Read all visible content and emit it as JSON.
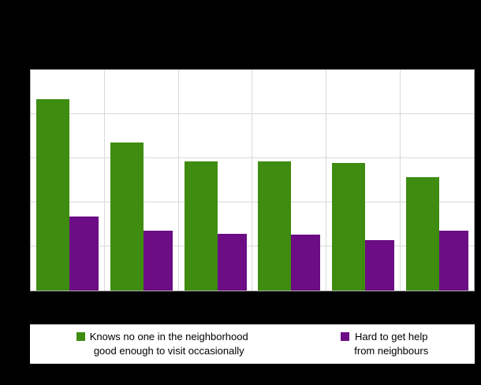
{
  "chart_data": {
    "type": "bar",
    "title": "",
    "xlabel": "",
    "ylabel": "",
    "ylim": [
      0,
      25
    ],
    "ytick_step": 5,
    "grid": true,
    "legend_position": "bottom",
    "categories": [
      "",
      "",
      "",
      "",
      "",
      ""
    ],
    "series": [
      {
        "name": "Knows no one in the neighborhood good enough to visit occasionally",
        "color": "#3e8c10",
        "values": [
          21.7,
          16.8,
          14.6,
          14.6,
          14.5,
          12.9
        ]
      },
      {
        "name": "Hard to get help from neighbours",
        "color": "#6c0d85",
        "values": [
          8.4,
          6.8,
          6.4,
          6.3,
          5.7,
          6.8
        ]
      }
    ]
  },
  "legend": {
    "items": [
      {
        "line1": "Knows no one in the neighborhood",
        "line2": "good enough to visit occasionally"
      },
      {
        "line1": "Hard to get help",
        "line2": "from neighbours"
      }
    ]
  },
  "colors": {
    "background": "#000000",
    "plot_background": "#ffffff",
    "gridline": "#d9d9d9",
    "series_green": "#3e8c10",
    "series_purple": "#6c0d85"
  }
}
